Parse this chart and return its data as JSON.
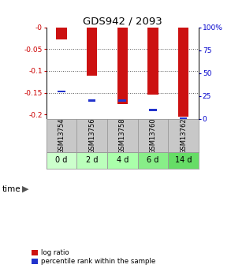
{
  "title": "GDS942 / 2093",
  "samples": [
    "GSM13754",
    "GSM13756",
    "GSM13758",
    "GSM13760",
    "GSM13762"
  ],
  "time_labels": [
    "0 d",
    "2 d",
    "4 d",
    "6 d",
    "14 d"
  ],
  "log_ratio": [
    -0.028,
    -0.11,
    -0.175,
    -0.155,
    -0.205
  ],
  "percentile_rank": [
    0.3,
    0.2,
    0.2,
    0.1,
    0.005
  ],
  "ylim_left": [
    -0.21,
    0.0
  ],
  "ylim_right": [
    0,
    100
  ],
  "bar_color": "#CC1111",
  "blue_color": "#2233CC",
  "left_tick_color": "#CC0000",
  "right_tick_color": "#0000CC",
  "sample_bg_color": "#C8C8C8",
  "time_bg_colors": [
    "#CCFFCC",
    "#BBFFBB",
    "#AAFFAA",
    "#88EE88",
    "#66DD66"
  ],
  "bar_width": 0.35,
  "blue_bar_width": 0.25,
  "legend_red_label": "log ratio",
  "legend_blue_label": "percentile rank within the sample",
  "figure_bg": "#FFFFFF",
  "yticks_left": [
    0,
    -0.05,
    -0.1,
    -0.15,
    -0.2
  ],
  "ytick_labels_left": [
    "-0",
    "-0.05",
    "-0.1",
    "-0.15",
    "-0.2"
  ],
  "yticks_right": [
    0,
    25,
    50,
    75,
    100
  ],
  "ytick_labels_right": [
    "0",
    "25",
    "50",
    "75",
    "100%"
  ]
}
